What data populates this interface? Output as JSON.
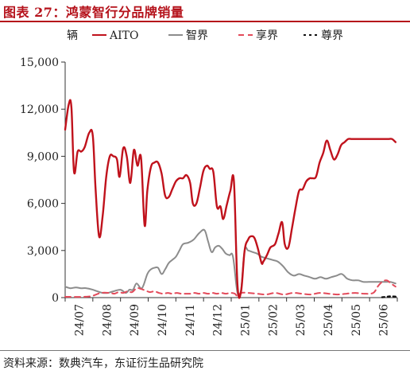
{
  "header": {
    "title": "图表 27：鸿蒙智行分品牌销量"
  },
  "footer": {
    "source": "资料来源：数典汽车，东证衍生品研究院"
  },
  "colors": {
    "aito": "#c0121c",
    "zhijie": "#8c8c8c",
    "xiangjie": "#e34a5a",
    "zunjie": "#111111",
    "title": "#b5121b"
  },
  "chart_data": {
    "type": "line",
    "title": "鸿蒙智行分品牌销量",
    "ylabel": "辆",
    "ylim": [
      0,
      15000
    ],
    "yticks": [
      0,
      3000,
      6000,
      9000,
      12000,
      15000
    ],
    "ytick_labels": [
      "0",
      "3,000",
      "6,000",
      "9,000",
      "12,000",
      "15,000"
    ],
    "xtick_labels": [
      "24/07",
      "24/08",
      "24/09",
      "24/10",
      "24/11",
      "24/12",
      "25/01",
      "25/02",
      "25/03",
      "25/04",
      "25/05",
      "25/06"
    ],
    "x_range_days": [
      0,
      372
    ],
    "legend_position": "top",
    "grid": false,
    "series": [
      {
        "name": "AITO",
        "style": "solid",
        "x": [
          0,
          4,
          7,
          10,
          14,
          18,
          22,
          27,
          31,
          34,
          38,
          42,
          46,
          50,
          54,
          58,
          61,
          65,
          69,
          73,
          77,
          81,
          85,
          89,
          92,
          96,
          100,
          104,
          108,
          112,
          116,
          120,
          124,
          128,
          132,
          136,
          140,
          143,
          147,
          151,
          155,
          159,
          162,
          166,
          170,
          174,
          177,
          181,
          185,
          189,
          193,
          197,
          201,
          205,
          208,
          212,
          216,
          220,
          222,
          226,
          230,
          235,
          239,
          243,
          246,
          250,
          254,
          258,
          262,
          266,
          270,
          274,
          277,
          281,
          285,
          289,
          293,
          297,
          301,
          305,
          309,
          313,
          317,
          321,
          325,
          329,
          333,
          337,
          341,
          346,
          350,
          354,
          358,
          362,
          366,
          370
        ],
        "y": [
          10700,
          12300,
          12100,
          8000,
          9300,
          9300,
          9600,
          10500,
          10300,
          7000,
          3900,
          5200,
          7700,
          9000,
          9000,
          8800,
          7700,
          9500,
          9000,
          7300,
          9400,
          8400,
          8900,
          4600,
          6800,
          8300,
          8600,
          8600,
          7900,
          6500,
          6400,
          6900,
          7400,
          7600,
          7600,
          7800,
          7300,
          6000,
          6000,
          7000,
          8100,
          8400,
          8200,
          8000,
          5800,
          5800,
          5000,
          5900,
          6800,
          7400,
          800,
          400,
          3000,
          3700,
          3900,
          3800,
          3100,
          2200,
          2300,
          2700,
          3200,
          3400,
          4100,
          4800,
          3400,
          3200,
          4400,
          5700,
          6800,
          6900,
          7400,
          7600,
          7600,
          7700,
          8600,
          9200,
          10000,
          9400,
          8800,
          9100,
          9700,
          9900,
          10100,
          10100,
          10100,
          10100,
          10100,
          10100,
          10100,
          10100,
          10100,
          10100,
          10100,
          10100,
          10100,
          9900
        ]
      },
      {
        "name": "智界",
        "style": "solid",
        "x": [
          0,
          6,
          12,
          18,
          24,
          31,
          36,
          42,
          48,
          54,
          62,
          68,
          72,
          76,
          80,
          86,
          92,
          96,
          100,
          104,
          108,
          112,
          116,
          120,
          124,
          128,
          132,
          138,
          144,
          150,
          156,
          160,
          164,
          168,
          172,
          176,
          180,
          184,
          188,
          193,
          197,
          201,
          205,
          210,
          215,
          220,
          226,
          232,
          238,
          244,
          250,
          256,
          262,
          268,
          274,
          280,
          286,
          292,
          298,
          304,
          310,
          316,
          322,
          328,
          334,
          340,
          346,
          352,
          358,
          364,
          370
        ],
        "y": [
          700,
          600,
          650,
          600,
          600,
          500,
          400,
          300,
          300,
          400,
          500,
          300,
          500,
          500,
          900,
          600,
          1500,
          1800,
          1900,
          1900,
          1500,
          1800,
          2200,
          2400,
          2600,
          3000,
          3400,
          3500,
          3700,
          4100,
          4300,
          3600,
          2900,
          3200,
          3300,
          3100,
          2800,
          2700,
          2600,
          300,
          500,
          3000,
          3000,
          2900,
          2800,
          2600,
          2500,
          2400,
          2300,
          2000,
          1600,
          1400,
          1500,
          1400,
          1300,
          1200,
          1300,
          1200,
          1300,
          1400,
          1500,
          1200,
          1100,
          1100,
          1000,
          1000,
          1000,
          1000,
          1000,
          1000,
          900
        ]
      },
      {
        "name": "享界",
        "style": "dashed",
        "x": [
          0,
          20,
          30,
          40,
          50,
          55,
          60,
          65,
          70,
          75,
          80,
          85,
          90,
          95,
          100,
          105,
          110,
          115,
          120,
          125,
          130,
          135,
          140,
          145,
          150,
          155,
          160,
          165,
          170,
          175,
          180,
          185,
          190,
          193,
          197,
          205,
          215,
          225,
          235,
          245,
          255,
          265,
          275,
          285,
          295,
          305,
          315,
          325,
          335,
          345,
          350,
          355,
          360,
          365,
          370
        ],
        "y": [
          50,
          50,
          100,
          300,
          300,
          250,
          350,
          300,
          400,
          350,
          600,
          550,
          450,
          350,
          400,
          300,
          250,
          300,
          250,
          300,
          250,
          250,
          250,
          300,
          250,
          300,
          250,
          300,
          250,
          300,
          250,
          300,
          250,
          100,
          300,
          300,
          250,
          200,
          300,
          200,
          300,
          250,
          200,
          300,
          250,
          200,
          250,
          300,
          250,
          300,
          700,
          1000,
          1100,
          900,
          700
        ]
      },
      {
        "name": "尊界",
        "style": "dotted",
        "x": [
          355,
          360,
          365,
          370
        ],
        "y": [
          20,
          50,
          80,
          60
        ]
      }
    ]
  }
}
